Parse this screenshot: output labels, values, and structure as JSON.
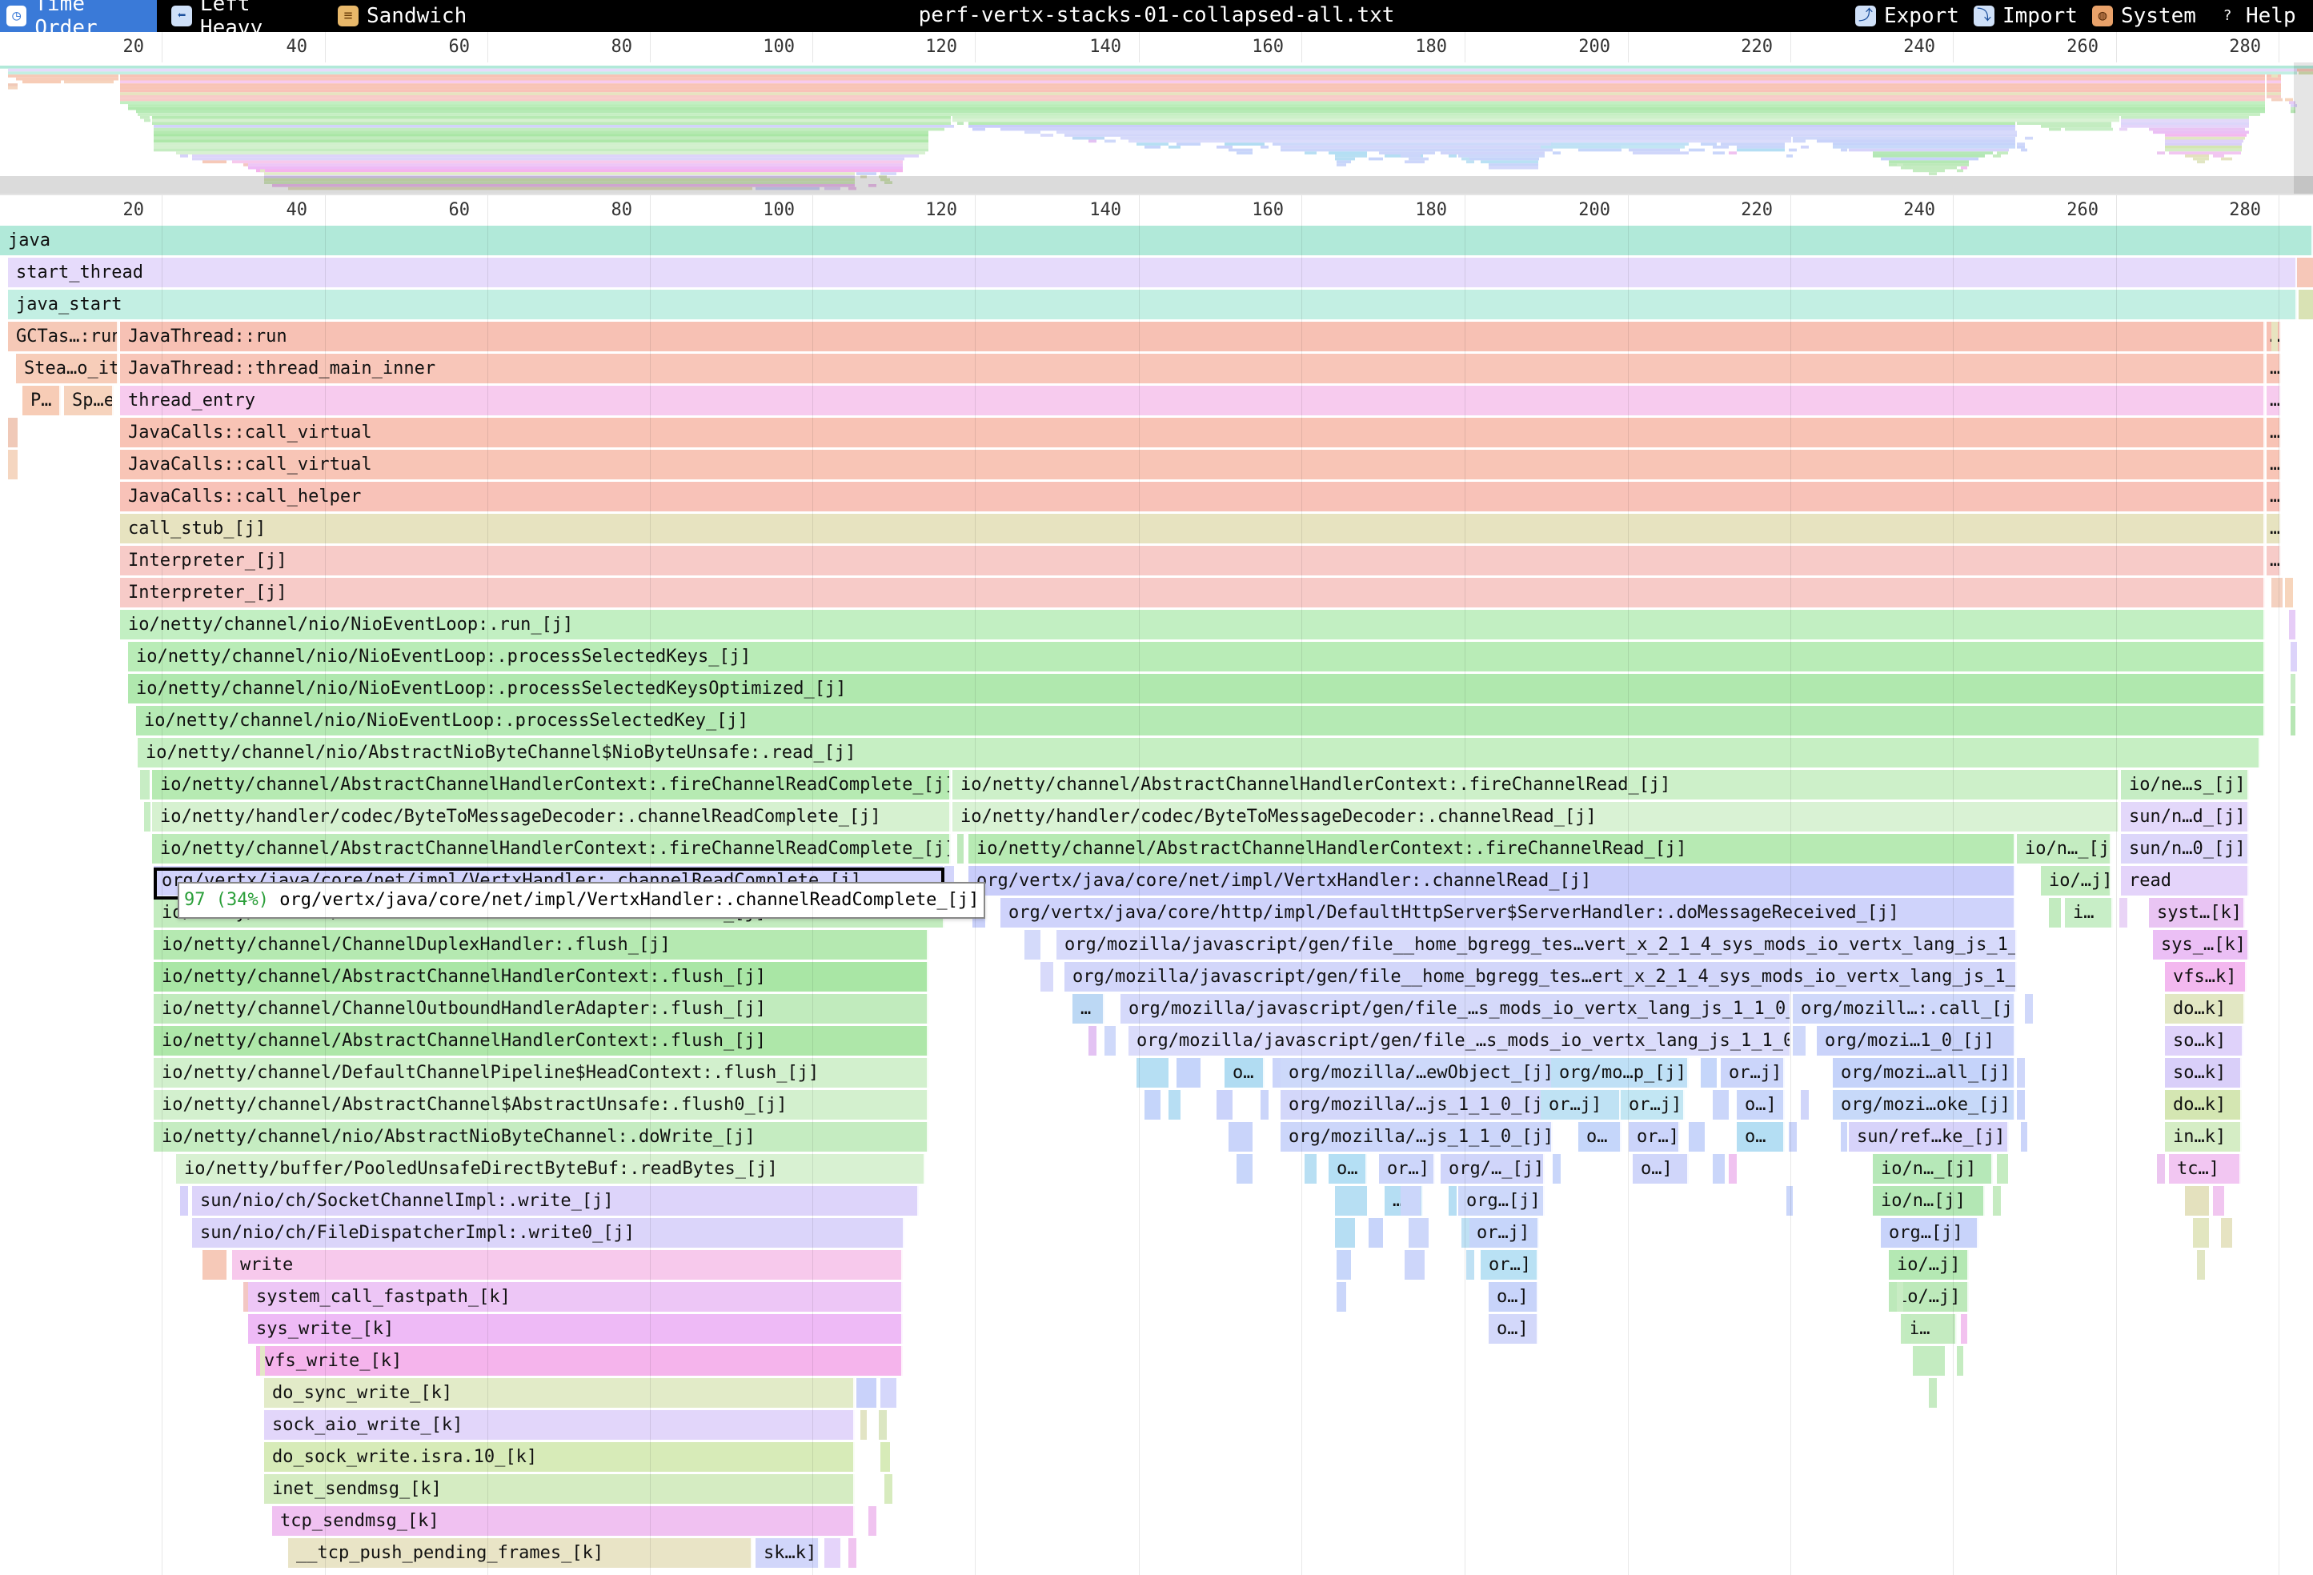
{
  "toolbar": {
    "time_order_label": "Time Order",
    "left_heavy_label": "Left Heavy",
    "sandwich_label": "Sandwich",
    "title": "perf-vertx-stacks-01-collapsed-all.txt",
    "export_label": "Export",
    "import_label": "Import",
    "system_label": "System",
    "help_label": "Help",
    "icons": {
      "time_order": "clock-icon",
      "left_heavy": "left-arrow-icon",
      "sandwich": "sandwich-icon",
      "export": "export-icon",
      "import": "import-icon",
      "system": "palette-icon",
      "help": "question-icon"
    },
    "accent_color": "#3a7ad8"
  },
  "ruler": {
    "ticks": [
      "20",
      "40",
      "60",
      "80",
      "100",
      "120",
      "140",
      "160",
      "180",
      "200",
      "220",
      "240",
      "260",
      "280"
    ]
  },
  "tooltip": {
    "count": "97",
    "percent": "(34%)",
    "name": "org/vertx/java/core/net/impl/VertxHandler:.channelReadComplete_[j]"
  },
  "frames": [
    {
      "id": "f0",
      "label": "java",
      "col": "#b1e9d9"
    },
    {
      "id": "f1",
      "label": "start_thread",
      "col": "#e6dbfb"
    },
    {
      "id": "f2",
      "label": "java_start",
      "col": "#c3efe3"
    },
    {
      "id": "f3",
      "label": "GCTas…:run",
      "col": "#f6c9b7"
    },
    {
      "id": "f4",
      "label": "JavaThread::run",
      "col": "#f7c1b4"
    },
    {
      "id": "f5",
      "label": "…",
      "col": "#f7c1b4"
    },
    {
      "id": "f6",
      "label": "Stea…o_it",
      "col": "#f7cdb9"
    },
    {
      "id": "f7",
      "label": "JavaThread::thread_main_inner",
      "col": "#f8c6b9"
    },
    {
      "id": "f8",
      "label": "…",
      "col": "#f8c6b9"
    },
    {
      "id": "f9",
      "label": "P…",
      "col": "#f7ccb6"
    },
    {
      "id": "f10",
      "label": "Sp…e",
      "col": "#f6d3bd"
    },
    {
      "id": "f11",
      "label": "thread_entry",
      "col": "#f7cbee"
    },
    {
      "id": "f12",
      "label": "…",
      "col": "#f7cbee"
    },
    {
      "id": "f13",
      "label": "JavaCalls::call_virtual",
      "col": "#f8c3b5"
    },
    {
      "id": "f14",
      "label": "…",
      "col": "#f8c3b5"
    },
    {
      "id": "f15",
      "label": "JavaCalls::call_virtual",
      "col": "#f8c5b6"
    },
    {
      "id": "f16",
      "label": "…",
      "col": "#f8c5b6"
    },
    {
      "id": "f17",
      "label": "JavaCalls::call_helper",
      "col": "#f8c2b8"
    },
    {
      "id": "f18",
      "label": "…",
      "col": "#f8c2b8"
    },
    {
      "id": "f19",
      "label": "call_stub_[j]",
      "col": "#e7e3c0"
    },
    {
      "id": "f20",
      "label": "…",
      "col": "#e7e3c0"
    },
    {
      "id": "f21",
      "label": "Interpreter_[j]",
      "col": "#f7cbc8"
    },
    {
      "id": "f22",
      "label": "…",
      "col": "#f7cbc8"
    },
    {
      "id": "f23",
      "label": "Interpreter_[j]",
      "col": "#f7cbc8"
    },
    {
      "id": "f24",
      "label": "io/netty/channel/nio/NioEventLoop:.run_[j]",
      "col": "#c2efc2"
    },
    {
      "id": "f25",
      "label": "io/netty/channel/nio/NioEventLoop:.processSelectedKeys_[j]",
      "col": "#b9ecb7"
    },
    {
      "id": "f26",
      "label": "io/netty/channel/nio/NioEventLoop:.processSelectedKeysOptimized_[j]",
      "col": "#b0e8ae"
    },
    {
      "id": "f27",
      "label": "io/netty/channel/nio/NioEventLoop:.processSelectedKey_[j]",
      "col": "#b5eab4"
    },
    {
      "id": "f28",
      "label": "io/netty/channel/nio/AbstractNioByteChannel$NioByteUnsafe:.read_[j]",
      "col": "#c6efc3"
    },
    {
      "id": "f29",
      "label": "io/netty/channel/AbstractChannelHandlerContext:.fireChannelReadComplete_[j]",
      "col": "#b6eab2"
    },
    {
      "id": "f30",
      "label": "io/netty/channel/AbstractChannelHandlerContext:.fireChannelRead_[j]",
      "col": "#cdf0c9"
    },
    {
      "id": "f31",
      "label": "io/ne…s_[j]",
      "col": "#c6edc4"
    },
    {
      "id": "f32",
      "label": "io/netty/handler/codec/ByteToMessageDecoder:.channelReadComplete_[j]",
      "col": "#d6f1d0"
    },
    {
      "id": "f33",
      "label": "io/netty/handler/codec/ByteToMessageDecoder:.channelRead_[j]",
      "col": "#d9f2d4"
    },
    {
      "id": "f34",
      "label": "sun/n…d_[j]",
      "col": "#e3d8fa"
    },
    {
      "id": "f35",
      "label": "io/netty/channel/AbstractChannelHandlerContext:.fireChannelReadComplete_[j]",
      "col": "#bdebb9"
    },
    {
      "id": "f36",
      "label": "io/netty/channel/AbstractChannelHandlerContext:.fireChannelRead_[j]",
      "col": "#b7eab3"
    },
    {
      "id": "f37",
      "label": "io/n…_[j]",
      "col": "#c4ecc1"
    },
    {
      "id": "f38",
      "label": "sun/n…0_[j]",
      "col": "#dcd6fa"
    },
    {
      "id": "f39",
      "label": "org/vertx/java/core/net/impl/VertxHandler:.channelReadComplete_[j]",
      "col": "#d2d3fb"
    },
    {
      "id": "f40",
      "label": "org/vertx/java/core/net/impl/VertxHandler:.channelRead_[j]",
      "col": "#c9cdfa"
    },
    {
      "id": "f41",
      "label": "io/…j]",
      "col": "#c3ecc0"
    },
    {
      "id": "f42",
      "label": "read",
      "col": "#e4d4fa"
    },
    {
      "id": "f43",
      "label": "io/netty/channel/AbstractChannelHandlerContext:.flush_[j]",
      "col": "#c3ecbf"
    },
    {
      "id": "f44",
      "label": "org/vertx/java/core/http/impl/DefaultHttpServer$ServerHandler:.doMessageReceived_[j]",
      "col": "#cfd3fb"
    },
    {
      "id": "f45",
      "label": "i…",
      "col": "#c8eec7"
    },
    {
      "id": "f46",
      "label": "syst…[k]",
      "col": "#e9c4f3"
    },
    {
      "id": "f47",
      "label": "io/netty/channel/ChannelDuplexHandler:.flush_[j]",
      "col": "#b5e9b1"
    },
    {
      "id": "f48",
      "label": "org/mozilla/javascript/gen/file__home_bgregg_tes…vert_x_2_1_4_sys_mods_io_vertx_lang_js_1_1_0_[j]",
      "col": "#d7dafb"
    },
    {
      "id": "f49",
      "label": "sys_…[k]",
      "col": "#ebbff5"
    },
    {
      "id": "f50",
      "label": "io/netty/channel/AbstractChannelHandlerContext:.flush_[j]",
      "col": "#a9e6a5"
    },
    {
      "id": "f51",
      "label": "org/mozilla/javascript/gen/file__home_bgregg_tes…ert_x_2_1_4_sys_mods_io_vertx_lang_js_1_1_0_[j]",
      "col": "#d2d6fa"
    },
    {
      "id": "f52",
      "label": "vfs…k]",
      "col": "#f3b8ef"
    },
    {
      "id": "f53",
      "label": "io/netty/channel/ChannelOutboundHandlerAdapter:.flush_[j]",
      "col": "#c1ebbd"
    },
    {
      "id": "f54",
      "label": "…",
      "col": "#bcd8f4"
    },
    {
      "id": "f55",
      "label": "org/mozilla/javascript/gen/file_…s_mods_io_vertx_lang_js_1_1_0_[j]",
      "col": "#d5d9fa"
    },
    {
      "id": "f56",
      "label": "org/mozill…:.call_[j]",
      "col": "#cfd8fa"
    },
    {
      "id": "f57",
      "label": "do…k]",
      "col": "#e2e7c3"
    },
    {
      "id": "f58",
      "label": "io/netty/channel/AbstractChannelHandlerContext:.flush_[j]",
      "col": "#aee7a9"
    },
    {
      "id": "f59",
      "label": "org/mozilla/javascript/gen/file_…s_mods_io_vertx_lang_js_1_1_0_[j]",
      "col": "#dbdcfb"
    },
    {
      "id": "f60",
      "label": "org/mozi…1_0_[j]",
      "col": "#cad3fa"
    },
    {
      "id": "f61",
      "label": "so…k]",
      "col": "#dfd2fa"
    },
    {
      "id": "f62",
      "label": "io/netty/channel/DefaultChannelPipeline$HeadContext:.flush_[j]",
      "col": "#d2f0cd"
    },
    {
      "id": "f63",
      "label": "o…",
      "col": "#b1dcf2"
    },
    {
      "id": "f64",
      "label": "org/mozilla/…ewObject_[j]",
      "col": "#cdd9fa"
    },
    {
      "id": "f65",
      "label": "org/mo…p_[j]",
      "col": "#bfe0f6"
    },
    {
      "id": "f66",
      "label": "or…j]",
      "col": "#cbd5fa"
    },
    {
      "id": "f67",
      "label": "org/mozi…all_[j]",
      "col": "#c5d3fa"
    },
    {
      "id": "f68",
      "label": "so…k]",
      "col": "#d9cff9"
    },
    {
      "id": "f69",
      "label": "io/netty/channel/AbstractChannel$AbstractUnsafe:.flush0_[j]",
      "col": "#d3f0ce"
    },
    {
      "id": "f70",
      "label": "org/mozilla/…js_1_1_0_[j]",
      "col": "#d3d7fa"
    },
    {
      "id": "f71",
      "label": "or…j]",
      "col": "#bfe2f4"
    },
    {
      "id": "f72",
      "label": "or…j]",
      "col": "#c2e6f3"
    },
    {
      "id": "f73",
      "label": "o…]",
      "col": "#c9d6fa"
    },
    {
      "id": "f74",
      "label": "org/mozi…oke_[j]",
      "col": "#c7d9f9"
    },
    {
      "id": "f75",
      "label": "do…k]",
      "col": "#d4e6b2"
    },
    {
      "id": "f76",
      "label": "io/netty/channel/nio/AbstractNioByteChannel:.doWrite_[j]",
      "col": "#c5ecc1"
    },
    {
      "id": "f77",
      "label": "org/mozilla/…js_1_1_0_[j]",
      "col": "#ccd6fa"
    },
    {
      "id": "f78",
      "label": "o…",
      "col": "#c5d6fa"
    },
    {
      "id": "f79",
      "label": "or…]",
      "col": "#cbd4fa"
    },
    {
      "id": "f80",
      "label": "o…",
      "col": "#b4def3"
    },
    {
      "id": "f81",
      "label": "sun/ref…ke_[j]",
      "col": "#d7d3fa"
    },
    {
      "id": "f82",
      "label": "in…k]",
      "col": "#d5edc5"
    },
    {
      "id": "f83",
      "label": "io/netty/buffer/PooledUnsafeDirectByteBuf:.readBytes_[j]",
      "col": "#d8f1d2"
    },
    {
      "id": "f84",
      "label": "o…",
      "col": "#b4dff4"
    },
    {
      "id": "f85",
      "label": "or…]",
      "col": "#cdd6fa"
    },
    {
      "id": "f86",
      "label": "org/…_[j]",
      "col": "#d0d5fa"
    },
    {
      "id": "f87",
      "label": "o…]",
      "col": "#d0d6fa"
    },
    {
      "id": "f88",
      "label": "io/n…_[j]",
      "col": "#b6e8b8"
    },
    {
      "id": "f89",
      "label": "tc…]",
      "col": "#f2c6f2"
    },
    {
      "id": "f90",
      "label": "sun/nio/ch/SocketChannelImpl:.write_[j]",
      "col": "#ddd4fa"
    },
    {
      "id": "f91",
      "label": "…",
      "col": "#b5def3"
    },
    {
      "id": "f92",
      "label": "org…[j]",
      "col": "#cdd8fa"
    },
    {
      "id": "f93",
      "label": "io/n…[j]",
      "col": "#b3e7b4"
    },
    {
      "id": "f94",
      "label": "sun/nio/ch/FileDispatcherImpl:.write0_[j]",
      "col": "#dbd5fa"
    },
    {
      "id": "f95",
      "label": "or…j]",
      "col": "#c6d5fa"
    },
    {
      "id": "f96",
      "label": "org…[j]",
      "col": "#c8d3fa"
    },
    {
      "id": "f97",
      "label": "write",
      "col": "#f7c9ec"
    },
    {
      "id": "f98",
      "label": "or…]",
      "col": "#b9e1f4"
    },
    {
      "id": "f99",
      "label": "io/…j]",
      "col": "#b4e8b3"
    },
    {
      "id": "f100",
      "label": "system_call_fastpath_[k]",
      "col": "#edc6f6"
    },
    {
      "id": "f101",
      "label": "o…]",
      "col": "#c8d4fa"
    },
    {
      "id": "f102",
      "label": "io/…j]",
      "col": "#bde9ba"
    },
    {
      "id": "f103",
      "label": "sys_write_[k]",
      "col": "#eebaf6"
    },
    {
      "id": "f104",
      "label": "o…]",
      "col": "#d3d8fa"
    },
    {
      "id": "f105",
      "label": "i…",
      "col": "#c4ebc0"
    },
    {
      "id": "f106",
      "label": "vfs_write_[k]",
      "col": "#f5b4ec"
    },
    {
      "id": "f107",
      "label": "do_sync_write_[k]",
      "col": "#e2ebc8"
    },
    {
      "id": "f108",
      "label": "sock_aio_write_[k]",
      "col": "#e2d6fa"
    },
    {
      "id": "f109",
      "label": "do_sock_write.isra.10_[k]",
      "col": "#d7ebb8"
    },
    {
      "id": "f110",
      "label": "inet_sendmsg_[k]",
      "col": "#d5ecc2"
    },
    {
      "id": "f111",
      "label": "tcp_sendmsg_[k]",
      "col": "#f0c1f1"
    },
    {
      "id": "f112",
      "label": "__tcp_push_pending_frames_[k]",
      "col": "#e9e4c6"
    },
    {
      "id": "f113",
      "label": "sk…k]",
      "col": "#d1d6fa"
    }
  ]
}
